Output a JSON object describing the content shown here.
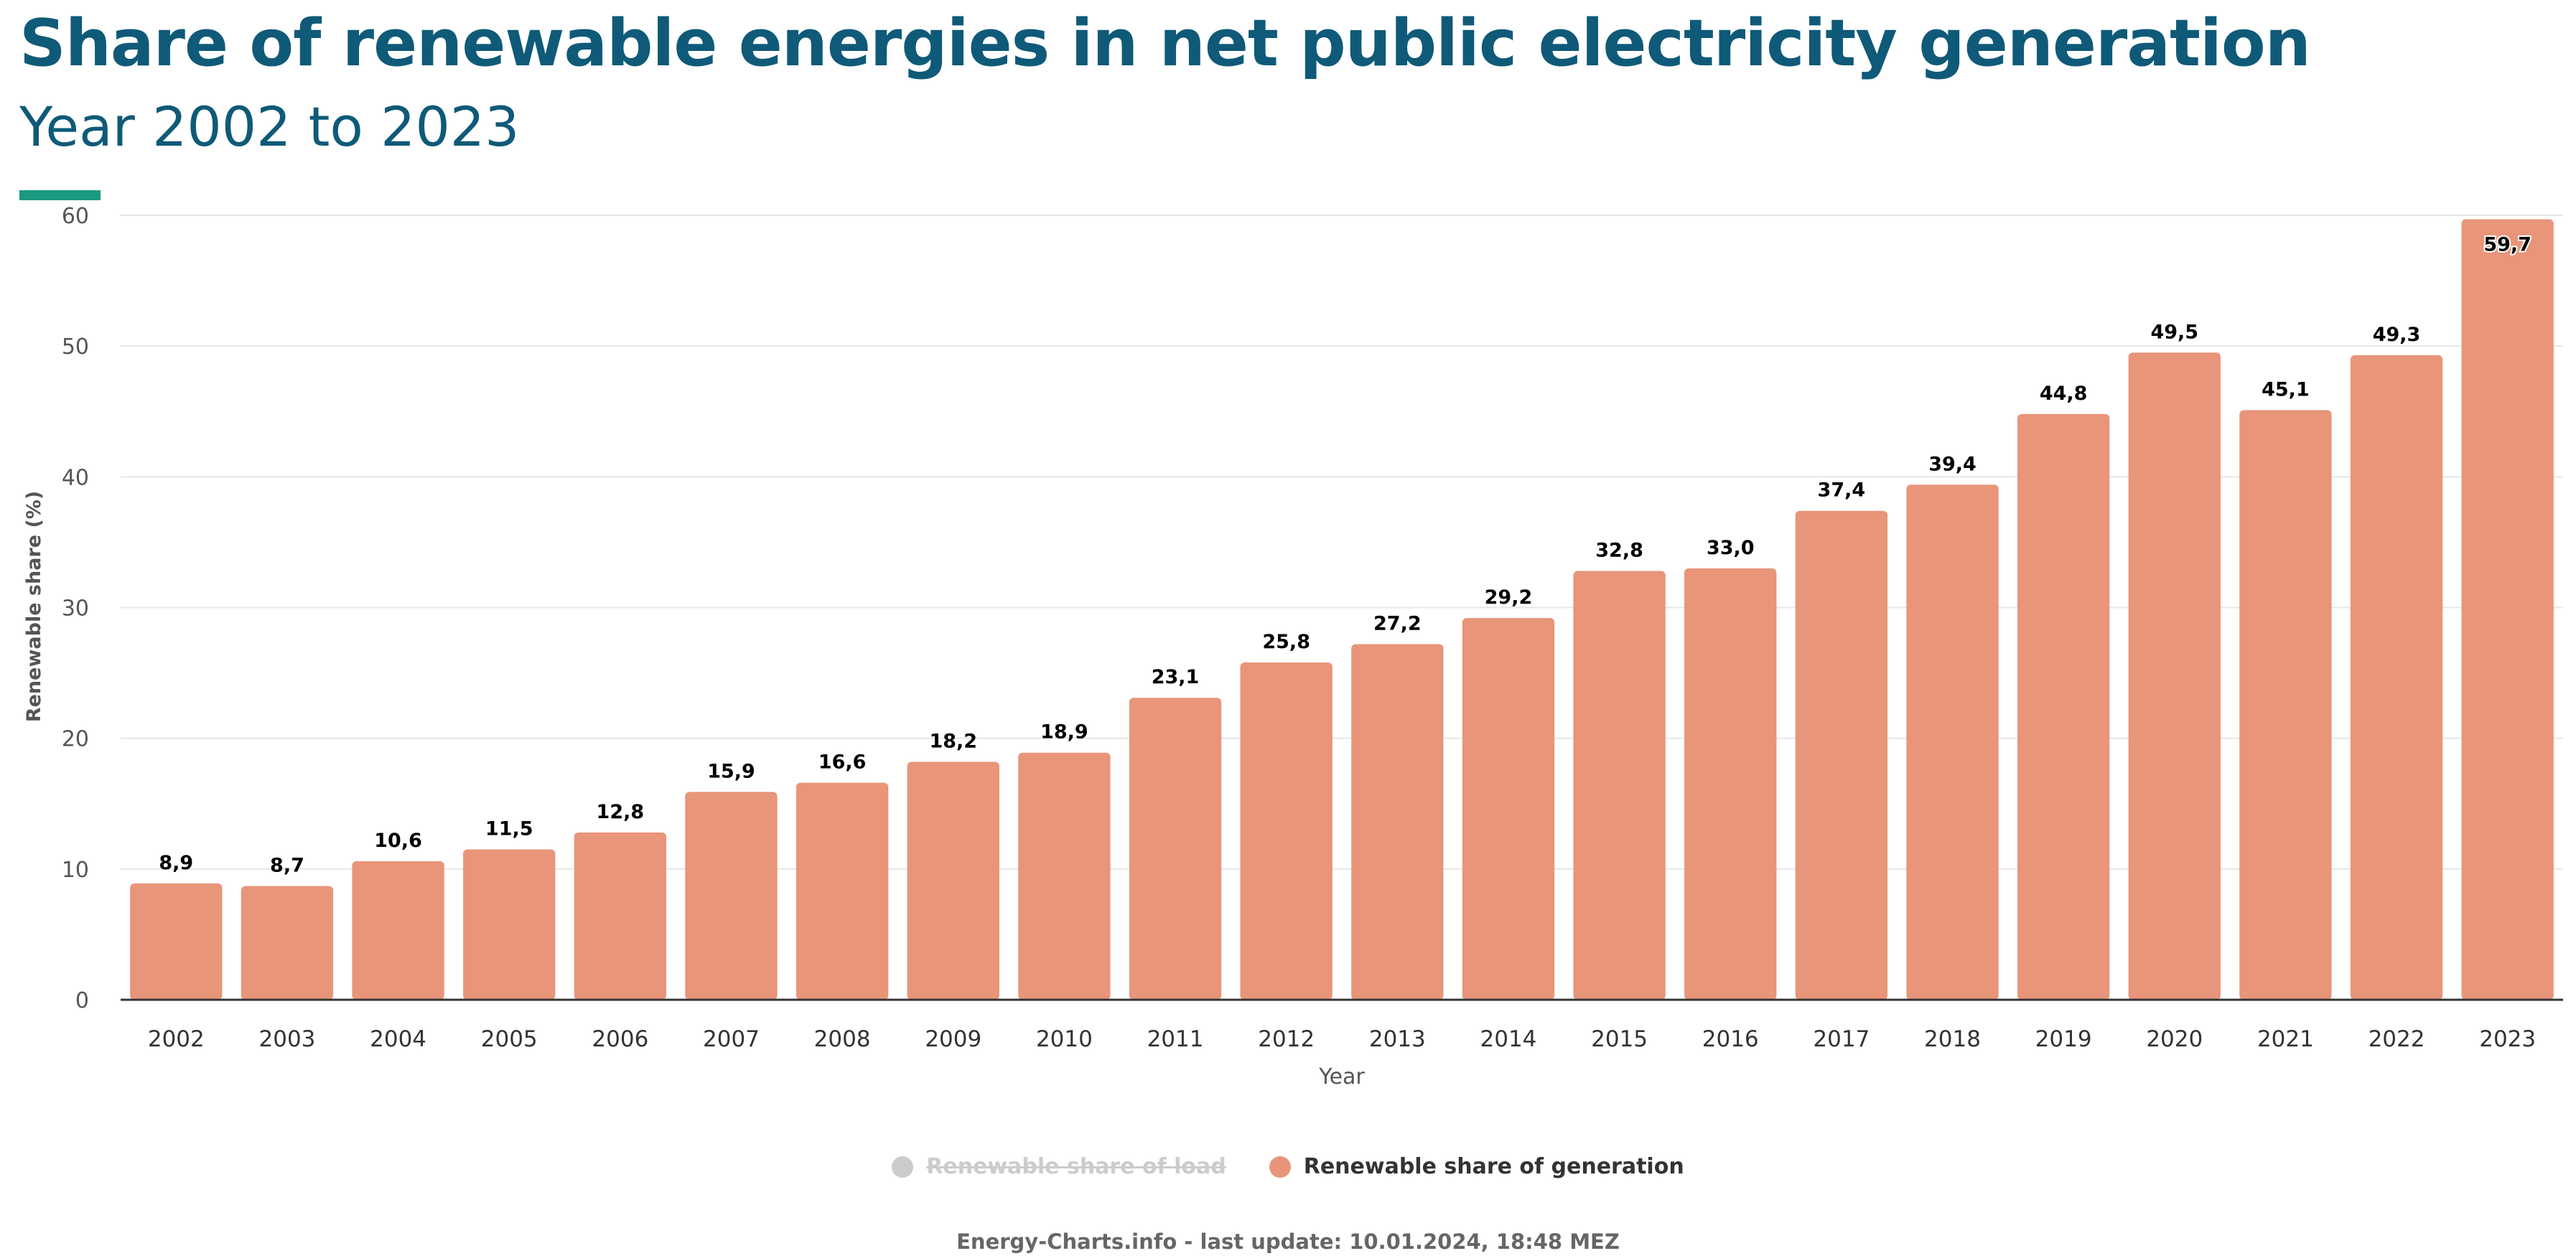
{
  "header": {
    "title": "Share of renewable energies in net public electricity generation",
    "subtitle": "Year 2002 to 2023"
  },
  "colors": {
    "title": "#0f5a78",
    "accent": "#1a9a80",
    "bar": "#e8957a",
    "legend_hidden": "#cccccc",
    "grid": "#e6e6e6",
    "axis": "#333333"
  },
  "legend": {
    "items": [
      {
        "label": "Renewable share of load",
        "color": "#cccccc",
        "state": "hidden"
      },
      {
        "label": "Renewable share of generation",
        "color": "#e8957a",
        "state": "visible"
      }
    ]
  },
  "footer": {
    "text": "Energy-Charts.info - last update: 10.01.2024, 18:48 MEZ"
  },
  "chart_data": {
    "type": "bar",
    "xlabel": "Year",
    "ylabel": "Renewable share (%)",
    "ylim": [
      0,
      60
    ],
    "yticks": [
      0,
      10,
      20,
      30,
      40,
      50,
      60
    ],
    "grid": true,
    "legend_position": "bottom",
    "categories": [
      "2002",
      "2003",
      "2004",
      "2005",
      "2006",
      "2007",
      "2008",
      "2009",
      "2010",
      "2011",
      "2012",
      "2013",
      "2014",
      "2015",
      "2016",
      "2017",
      "2018",
      "2019",
      "2020",
      "2021",
      "2022",
      "2023"
    ],
    "series": [
      {
        "name": "Renewable share of generation",
        "values": [
          8.9,
          8.7,
          10.6,
          11.5,
          12.8,
          15.9,
          16.6,
          18.2,
          18.9,
          23.1,
          25.8,
          27.2,
          29.2,
          32.8,
          33.0,
          37.4,
          39.4,
          44.8,
          49.5,
          45.1,
          49.3,
          59.7
        ],
        "data_labels": [
          "8,9",
          "8,7",
          "10,6",
          "11,5",
          "12,8",
          "15,9",
          "16,6",
          "18,2",
          "18,9",
          "23,1",
          "25,8",
          "27,2",
          "29,2",
          "32,8",
          "33,0",
          "37,4",
          "39,4",
          "44,8",
          "49,5",
          "45,1",
          "49,3",
          "59,7"
        ]
      }
    ]
  }
}
